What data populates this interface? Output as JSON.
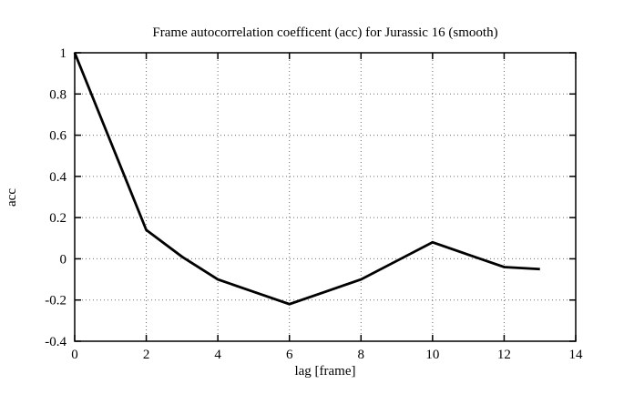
{
  "chart_data": {
    "type": "line",
    "title": "Frame autocorrelation coefficent (acc) for Jurassic 16 (smooth)",
    "xlabel": "lag [frame]",
    "ylabel": "acc",
    "x": [
      0,
      1,
      2,
      3,
      4,
      5,
      6,
      7,
      8,
      9,
      10,
      11,
      12,
      13
    ],
    "values": [
      1.0,
      0.57,
      0.14,
      0.01,
      -0.1,
      -0.16,
      -0.22,
      -0.16,
      -0.1,
      -0.01,
      0.08,
      0.02,
      -0.04,
      -0.05
    ],
    "xlim": [
      0,
      14
    ],
    "ylim": [
      -0.4,
      1
    ],
    "xticks": [
      0,
      2,
      4,
      6,
      8,
      10,
      12,
      14
    ],
    "yticks": [
      -0.4,
      -0.2,
      0,
      0.2,
      0.4,
      0.6,
      0.8,
      1
    ],
    "grid": true,
    "grid_style": "dotted",
    "legend_position": "none",
    "line_color": "#000000",
    "background_color": "#ffffff"
  }
}
